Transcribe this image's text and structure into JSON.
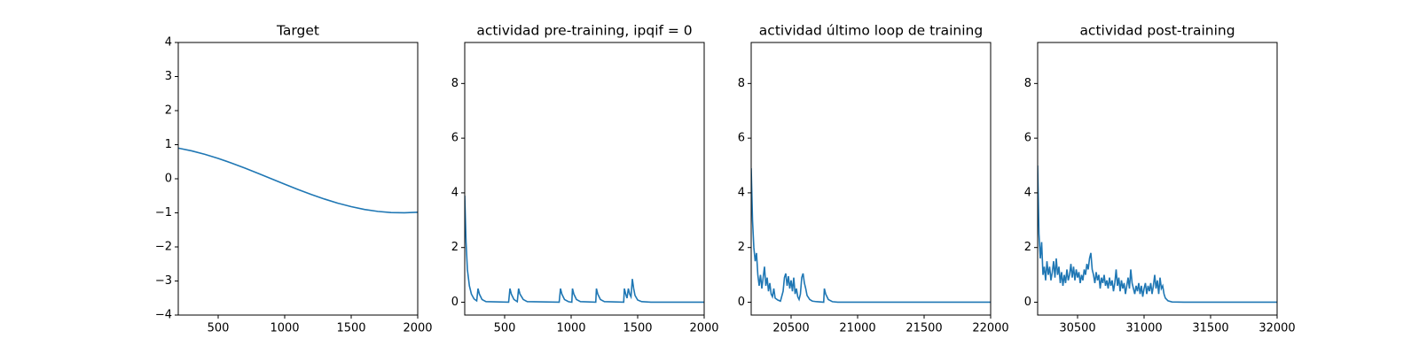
{
  "chart_data": [
    {
      "type": "line",
      "title": "Target",
      "color": "#1f77b4",
      "x": [
        200,
        300,
        400,
        500,
        600,
        700,
        800,
        900,
        1000,
        1100,
        1200,
        1300,
        1400,
        1500,
        1600,
        1700,
        1800,
        1900,
        2000
      ],
      "values": [
        0.9,
        0.82,
        0.718,
        0.598,
        0.462,
        0.315,
        0.16,
        0.001,
        -0.158,
        -0.314,
        -0.461,
        -0.596,
        -0.717,
        -0.819,
        -0.901,
        -0.958,
        -0.991,
        -0.999,
        -0.982
      ],
      "xlim": [
        200,
        2000
      ],
      "ylim": [
        -4,
        4
      ],
      "xticks": [
        500,
        1000,
        1500,
        2000
      ],
      "yticks": [
        {
          "value": -4,
          "label": "−4"
        },
        {
          "value": -3,
          "label": "−3"
        },
        {
          "value": -2,
          "label": "−2"
        },
        {
          "value": -1,
          "label": "−1"
        },
        0,
        1,
        2,
        3,
        4
      ]
    },
    {
      "type": "line",
      "title": "actividad pre-training, ipqif = 0",
      "color": "#1f77b4",
      "x": [
        200,
        210,
        220,
        235,
        250,
        270,
        290,
        300,
        310,
        330,
        360,
        530,
        540,
        550,
        570,
        595,
        605,
        615,
        640,
        670,
        910,
        920,
        930,
        950,
        980,
        1005,
        1010,
        1020,
        1040,
        1070,
        1185,
        1190,
        1200,
        1220,
        1250,
        1395,
        1400,
        1410,
        1420,
        1430,
        1440,
        1450,
        1460,
        1470,
        1480,
        1500,
        1530,
        1600,
        2000
      ],
      "values": [
        3.9,
        2.2,
        1.2,
        0.6,
        0.3,
        0.12,
        0.05,
        0.5,
        0.3,
        0.1,
        0.02,
        0,
        0.5,
        0.3,
        0.1,
        0.02,
        0.5,
        0.3,
        0.1,
        0.02,
        0,
        0.5,
        0.3,
        0.1,
        0.02,
        0,
        0.5,
        0.3,
        0.1,
        0.02,
        0,
        0.5,
        0.3,
        0.1,
        0.02,
        0,
        0.5,
        0.3,
        0.15,
        0.5,
        0.3,
        0.2,
        0.85,
        0.5,
        0.25,
        0.08,
        0.02,
        0,
        0
      ],
      "xlim": [
        200,
        2000
      ],
      "ylim": [
        -0.47,
        9.5
      ],
      "xticks": [
        500,
        1000,
        1500,
        2000
      ],
      "yticks": [
        0,
        2,
        4,
        6,
        8
      ]
    },
    {
      "type": "line",
      "title": "actividad último loop de training",
      "color": "#1f77b4",
      "x": [
        20200,
        20210,
        20220,
        20230,
        20240,
        20250,
        20260,
        20270,
        20280,
        20290,
        20300,
        20310,
        20320,
        20330,
        20340,
        20350,
        20360,
        20370,
        20380,
        20400,
        20420,
        20440,
        20450,
        20460,
        20470,
        20480,
        20490,
        20500,
        20510,
        20520,
        20530,
        20540,
        20550,
        20560,
        20570,
        20580,
        20590,
        20600,
        20610,
        20620,
        20640,
        20660,
        20690,
        20745,
        20750,
        20760,
        20780,
        20810,
        20850,
        22000
      ],
      "values": [
        4.9,
        3.0,
        2.0,
        1.5,
        1.8,
        1.0,
        0.6,
        1.0,
        0.5,
        0.9,
        1.3,
        0.6,
        0.9,
        0.4,
        0.7,
        0.3,
        0.2,
        0.5,
        0.15,
        0.08,
        0.04,
        0.4,
        0.9,
        1.05,
        0.6,
        0.95,
        0.5,
        0.8,
        0.4,
        0.9,
        0.3,
        0.5,
        0.2,
        0.1,
        0.3,
        0.9,
        1.05,
        0.7,
        0.5,
        0.25,
        0.1,
        0.04,
        0.02,
        0,
        0.5,
        0.3,
        0.1,
        0.02,
        0,
        0
      ],
      "xlim": [
        20200,
        22000
      ],
      "ylim": [
        -0.47,
        9.5
      ],
      "xticks": [
        20500,
        21000,
        21500,
        22000
      ],
      "yticks": [
        0,
        2,
        4,
        6,
        8
      ]
    },
    {
      "type": "line",
      "title": "actividad post-training",
      "color": "#1f77b4",
      "x": [
        30200,
        30210,
        30220,
        30230,
        30240,
        30250,
        30260,
        30270,
        30280,
        30290,
        30300,
        30310,
        30320,
        30330,
        30340,
        30350,
        30360,
        30370,
        30380,
        30390,
        30400,
        30410,
        30420,
        30430,
        30440,
        30450,
        30460,
        30470,
        30480,
        30490,
        30500,
        30510,
        30520,
        30530,
        30540,
        30550,
        30560,
        30570,
        30580,
        30590,
        30600,
        30610,
        30620,
        30630,
        30640,
        30650,
        30660,
        30670,
        30680,
        30690,
        30700,
        30710,
        30720,
        30730,
        30740,
        30750,
        30760,
        30770,
        30780,
        30790,
        30800,
        30810,
        30820,
        30830,
        30840,
        30850,
        30860,
        30870,
        30880,
        30890,
        30900,
        30910,
        30920,
        30930,
        30940,
        30950,
        30960,
        30970,
        30980,
        30990,
        31000,
        31010,
        31020,
        31030,
        31040,
        31050,
        31060,
        31070,
        31080,
        31090,
        31100,
        31110,
        31120,
        31130,
        31140,
        31150,
        31160,
        31180,
        31210,
        31300,
        32000
      ],
      "values": [
        5.0,
        2.5,
        1.6,
        2.2,
        1.0,
        1.3,
        0.8,
        1.5,
        1.0,
        1.3,
        0.8,
        1.1,
        1.5,
        0.9,
        1.6,
        1.0,
        1.3,
        0.7,
        1.1,
        0.6,
        1.0,
        0.7,
        1.2,
        0.8,
        1.0,
        1.4,
        0.9,
        1.3,
        0.8,
        1.2,
        0.9,
        1.1,
        0.7,
        1.0,
        0.8,
        1.2,
        1.0,
        1.4,
        1.2,
        1.6,
        1.8,
        1.2,
        1.0,
        0.7,
        1.1,
        0.8,
        1.0,
        0.5,
        0.9,
        0.7,
        1.0,
        0.6,
        0.8,
        0.5,
        0.9,
        0.6,
        0.8,
        0.4,
        0.7,
        1.2,
        0.6,
        0.9,
        0.4,
        0.8,
        0.5,
        0.7,
        0.3,
        0.6,
        0.9,
        0.5,
        1.2,
        0.7,
        0.5,
        0.3,
        0.6,
        0.4,
        0.7,
        0.3,
        0.6,
        0.2,
        0.5,
        0.7,
        0.3,
        0.6,
        0.4,
        0.7,
        0.3,
        0.6,
        1.0,
        0.5,
        0.8,
        0.3,
        0.9,
        0.5,
        0.6,
        0.3,
        0.15,
        0.05,
        0.01,
        0,
        0
      ],
      "xlim": [
        30200,
        32000
      ],
      "ylim": [
        -0.47,
        9.5
      ],
      "xticks": [
        30500,
        31000,
        31500,
        32000
      ],
      "yticks": [
        0,
        2,
        4,
        6,
        8
      ]
    }
  ]
}
